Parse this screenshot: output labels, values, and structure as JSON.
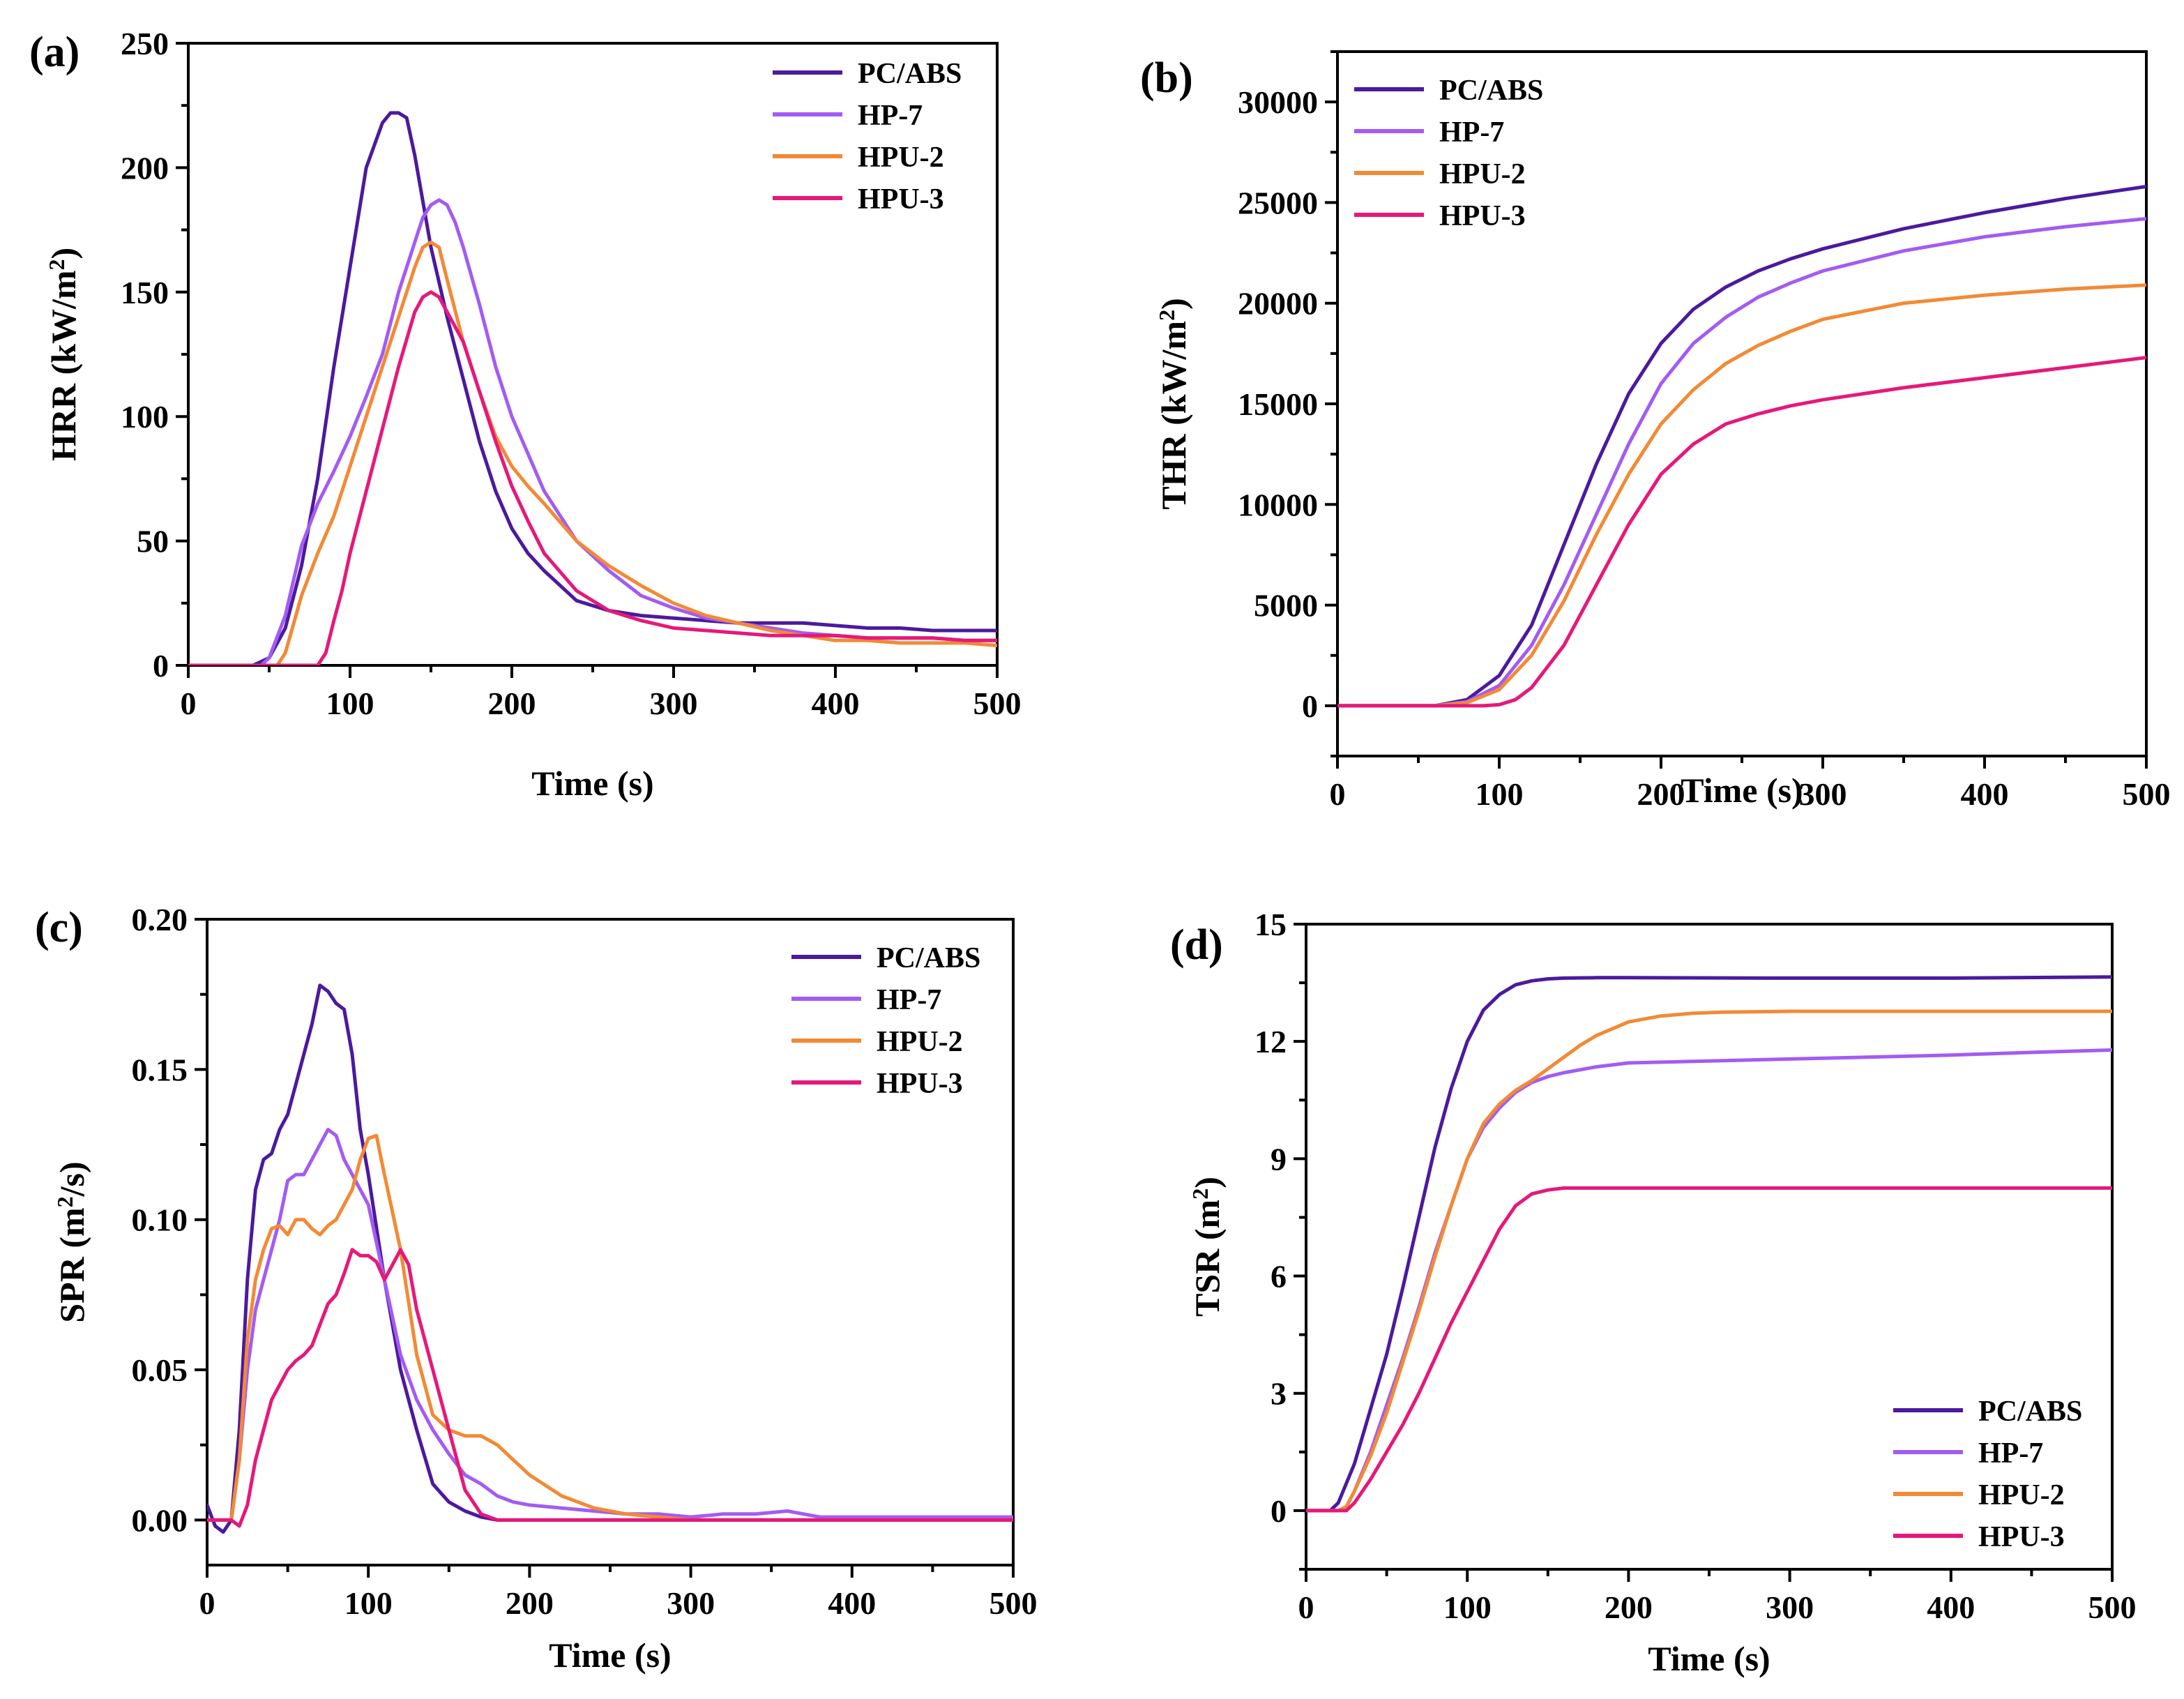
{
  "colors": {
    "PC/ABS": "#4b1a9e",
    "HP-7": "#a35cf2",
    "HPU-2": "#f28a35",
    "HPU-3": "#e5197a"
  },
  "chart_data": [
    {
      "id": "a",
      "panel_label": "(a)",
      "type": "line",
      "xlabel": "Time (s)",
      "ylabel": "HRR (kW/m²)",
      "xlim": [
        0,
        500
      ],
      "ylim": [
        0,
        250
      ],
      "xticks": [
        0,
        100,
        200,
        300,
        400,
        500
      ],
      "yticks": [
        0,
        50,
        100,
        150,
        200,
        250
      ],
      "legend_position": "top-right",
      "series": [
        {
          "name": "PC/ABS",
          "x": [
            0,
            40,
            50,
            60,
            70,
            80,
            90,
            100,
            110,
            120,
            125,
            130,
            135,
            140,
            150,
            160,
            170,
            180,
            190,
            200,
            210,
            220,
            240,
            260,
            280,
            300,
            320,
            340,
            360,
            380,
            400,
            420,
            440,
            460,
            480,
            500
          ],
          "y": [
            0,
            0,
            3,
            15,
            40,
            75,
            120,
            160,
            200,
            218,
            222,
            222,
            220,
            205,
            168,
            140,
            115,
            90,
            70,
            55,
            45,
            38,
            26,
            22,
            20,
            19,
            18,
            17,
            17,
            17,
            16,
            15,
            15,
            14,
            14,
            14
          ]
        },
        {
          "name": "HP-7",
          "x": [
            0,
            45,
            50,
            60,
            70,
            80,
            90,
            100,
            110,
            120,
            130,
            140,
            145,
            150,
            155,
            160,
            165,
            170,
            180,
            190,
            200,
            220,
            240,
            260,
            280,
            300,
            320,
            340,
            360,
            380,
            400,
            420,
            440,
            460,
            480,
            500
          ],
          "y": [
            0,
            0,
            3,
            20,
            48,
            65,
            78,
            92,
            108,
            125,
            150,
            170,
            180,
            185,
            187,
            185,
            178,
            168,
            145,
            120,
            100,
            70,
            50,
            38,
            28,
            23,
            19,
            17,
            15,
            13,
            12,
            11,
            11,
            11,
            10,
            10
          ]
        },
        {
          "name": "HPU-2",
          "x": [
            0,
            55,
            60,
            70,
            80,
            90,
            100,
            110,
            120,
            130,
            140,
            145,
            150,
            155,
            160,
            170,
            180,
            190,
            200,
            210,
            220,
            240,
            260,
            280,
            300,
            320,
            340,
            360,
            380,
            400,
            420,
            440,
            460,
            480,
            500
          ],
          "y": [
            0,
            0,
            5,
            28,
            45,
            60,
            80,
            100,
            120,
            140,
            160,
            168,
            170,
            168,
            155,
            130,
            110,
            92,
            80,
            72,
            65,
            50,
            40,
            32,
            25,
            20,
            17,
            14,
            12,
            10,
            10,
            9,
            9,
            9,
            8
          ]
        },
        {
          "name": "HPU-3",
          "x": [
            0,
            80,
            85,
            90,
            95,
            100,
            110,
            120,
            130,
            140,
            145,
            150,
            155,
            160,
            170,
            180,
            190,
            200,
            210,
            220,
            240,
            260,
            280,
            300,
            320,
            340,
            360,
            380,
            400,
            420,
            440,
            460,
            480,
            500
          ],
          "y": [
            0,
            0,
            5,
            18,
            30,
            45,
            70,
            95,
            120,
            142,
            148,
            150,
            148,
            142,
            130,
            110,
            90,
            72,
            58,
            45,
            30,
            22,
            18,
            15,
            14,
            13,
            12,
            12,
            12,
            11,
            11,
            11,
            10,
            10
          ]
        }
      ]
    },
    {
      "id": "b",
      "panel_label": "(b)",
      "type": "line",
      "xlabel": "Time (s)",
      "ylabel": "THR (kW/m²)",
      "xlim": [
        0,
        500
      ],
      "ylim": [
        -2500,
        32500
      ],
      "xticks": [
        0,
        100,
        200,
        300,
        400,
        500
      ],
      "yticks": [
        0,
        5000,
        10000,
        15000,
        20000,
        25000,
        30000
      ],
      "legend_position": "top-left",
      "series": [
        {
          "name": "PC/ABS",
          "x": [
            0,
            60,
            80,
            100,
            120,
            140,
            160,
            180,
            200,
            220,
            240,
            260,
            280,
            300,
            350,
            400,
            450,
            500
          ],
          "y": [
            0,
            0,
            300,
            1500,
            4000,
            8000,
            12000,
            15500,
            18000,
            19700,
            20800,
            21600,
            22200,
            22700,
            23700,
            24500,
            25200,
            25800
          ]
        },
        {
          "name": "HP-7",
          "x": [
            0,
            60,
            80,
            100,
            120,
            140,
            160,
            180,
            200,
            220,
            240,
            260,
            280,
            300,
            350,
            400,
            450,
            500
          ],
          "y": [
            0,
            0,
            200,
            1000,
            3000,
            6000,
            9500,
            13000,
            16000,
            18000,
            19300,
            20300,
            21000,
            21600,
            22600,
            23300,
            23800,
            24200
          ]
        },
        {
          "name": "HPU-2",
          "x": [
            0,
            60,
            80,
            100,
            120,
            140,
            160,
            180,
            200,
            220,
            240,
            260,
            280,
            300,
            350,
            400,
            450,
            500
          ],
          "y": [
            0,
            0,
            150,
            800,
            2500,
            5200,
            8500,
            11500,
            14000,
            15700,
            17000,
            17900,
            18600,
            19200,
            20000,
            20400,
            20700,
            20900
          ]
        },
        {
          "name": "HPU-3",
          "x": [
            0,
            90,
            100,
            110,
            120,
            140,
            160,
            180,
            200,
            220,
            240,
            260,
            280,
            300,
            350,
            400,
            450,
            500
          ],
          "y": [
            0,
            0,
            50,
            300,
            900,
            3000,
            6000,
            9000,
            11500,
            13000,
            14000,
            14500,
            14900,
            15200,
            15800,
            16300,
            16800,
            17300
          ]
        }
      ]
    },
    {
      "id": "c",
      "panel_label": "(c)",
      "type": "line",
      "xlabel": "Time (s)",
      "ylabel": "SPR (m²/s)",
      "xlim": [
        0,
        500
      ],
      "ylim": [
        -0.015,
        0.2
      ],
      "xticks": [
        0,
        100,
        200,
        300,
        400,
        500
      ],
      "yticks": [
        0.0,
        0.05,
        0.1,
        0.15,
        0.2
      ],
      "ytick_labels": [
        "0.00",
        "0.05",
        "0.10",
        "0.15",
        "0.20"
      ],
      "legend_position": "top-right",
      "series": [
        {
          "name": "PC/ABS",
          "x": [
            0,
            5,
            10,
            15,
            20,
            25,
            30,
            35,
            40,
            45,
            50,
            55,
            60,
            65,
            70,
            75,
            80,
            85,
            90,
            95,
            100,
            110,
            120,
            130,
            140,
            150,
            160,
            170,
            180,
            200,
            250,
            300,
            350,
            400,
            450,
            500
          ],
          "y": [
            0.005,
            -0.002,
            -0.004,
            0.0,
            0.03,
            0.08,
            0.11,
            0.12,
            0.122,
            0.13,
            0.135,
            0.145,
            0.155,
            0.165,
            0.178,
            0.176,
            0.172,
            0.17,
            0.155,
            0.13,
            0.115,
            0.08,
            0.05,
            0.03,
            0.012,
            0.006,
            0.003,
            0.001,
            0,
            0,
            0,
            0,
            0,
            0,
            0,
            0
          ]
        },
        {
          "name": "HP-7",
          "x": [
            0,
            10,
            15,
            20,
            25,
            30,
            35,
            40,
            45,
            50,
            55,
            60,
            65,
            70,
            75,
            80,
            85,
            90,
            95,
            100,
            110,
            120,
            130,
            140,
            150,
            160,
            170,
            180,
            190,
            200,
            220,
            240,
            260,
            280,
            300,
            320,
            340,
            360,
            380,
            400,
            420,
            440,
            460,
            480,
            500
          ],
          "y": [
            0,
            0,
            0,
            0.02,
            0.05,
            0.07,
            0.08,
            0.09,
            0.1,
            0.113,
            0.115,
            0.115,
            0.12,
            0.125,
            0.13,
            0.128,
            0.12,
            0.115,
            0.11,
            0.105,
            0.08,
            0.055,
            0.04,
            0.03,
            0.022,
            0.015,
            0.012,
            0.008,
            0.006,
            0.005,
            0.004,
            0.003,
            0.002,
            0.002,
            0.001,
            0.002,
            0.002,
            0.003,
            0.001,
            0.001,
            0.001,
            0.001,
            0.001,
            0.001,
            0.001
          ]
        },
        {
          "name": "HPU-2",
          "x": [
            0,
            10,
            15,
            20,
            25,
            30,
            35,
            40,
            45,
            50,
            55,
            60,
            65,
            70,
            75,
            80,
            85,
            90,
            95,
            100,
            105,
            110,
            120,
            130,
            140,
            150,
            160,
            170,
            180,
            190,
            200,
            220,
            240,
            260,
            280,
            300,
            350,
            400,
            450,
            500
          ],
          "y": [
            0,
            0,
            0,
            0.02,
            0.06,
            0.08,
            0.09,
            0.097,
            0.098,
            0.095,
            0.1,
            0.1,
            0.097,
            0.095,
            0.098,
            0.1,
            0.105,
            0.11,
            0.12,
            0.127,
            0.128,
            0.115,
            0.09,
            0.055,
            0.035,
            0.03,
            0.028,
            0.028,
            0.025,
            0.02,
            0.015,
            0.008,
            0.004,
            0.002,
            0.001,
            0,
            0,
            0,
            0,
            0
          ]
        },
        {
          "name": "HPU-3",
          "x": [
            0,
            15,
            20,
            25,
            30,
            35,
            40,
            45,
            50,
            55,
            60,
            65,
            70,
            75,
            80,
            85,
            90,
            95,
            100,
            105,
            110,
            115,
            120,
            125,
            130,
            140,
            150,
            160,
            170,
            180,
            200,
            250,
            300,
            350,
            400,
            450,
            500
          ],
          "y": [
            0,
            0,
            -0.002,
            0.005,
            0.02,
            0.03,
            0.04,
            0.045,
            0.05,
            0.053,
            0.055,
            0.058,
            0.065,
            0.072,
            0.075,
            0.082,
            0.09,
            0.088,
            0.088,
            0.086,
            0.08,
            0.085,
            0.09,
            0.085,
            0.07,
            0.05,
            0.03,
            0.01,
            0.002,
            0,
            0,
            0,
            0,
            0,
            0,
            0,
            0
          ]
        }
      ]
    },
    {
      "id": "d",
      "panel_label": "(d)",
      "type": "line",
      "xlabel": "Time (s)",
      "ylabel": "TSR (m²)",
      "xlim": [
        0,
        500
      ],
      "ylim": [
        -1.5,
        15
      ],
      "xticks": [
        0,
        100,
        200,
        300,
        400,
        500
      ],
      "yticks": [
        0,
        3,
        6,
        9,
        12,
        15
      ],
      "legend_position": "bottom-right",
      "series": [
        {
          "name": "PC/ABS",
          "x": [
            0,
            15,
            20,
            30,
            40,
            50,
            60,
            70,
            80,
            90,
            100,
            110,
            120,
            130,
            140,
            150,
            160,
            180,
            200,
            300,
            400,
            500
          ],
          "y": [
            0,
            0,
            0.2,
            1.2,
            2.6,
            4.0,
            5.7,
            7.5,
            9.3,
            10.8,
            12.0,
            12.8,
            13.2,
            13.45,
            13.55,
            13.6,
            13.62,
            13.63,
            13.63,
            13.62,
            13.62,
            13.65
          ]
        },
        {
          "name": "HP-7",
          "x": [
            0,
            20,
            25,
            30,
            40,
            50,
            60,
            70,
            80,
            90,
            100,
            110,
            120,
            130,
            140,
            150,
            160,
            180,
            200,
            250,
            300,
            350,
            400,
            450,
            500
          ],
          "y": [
            0,
            0,
            0.1,
            0.5,
            1.5,
            2.7,
            3.9,
            5.2,
            6.6,
            7.8,
            9.0,
            9.8,
            10.3,
            10.7,
            10.95,
            11.1,
            11.2,
            11.35,
            11.45,
            11.5,
            11.55,
            11.6,
            11.65,
            11.72,
            11.78
          ]
        },
        {
          "name": "HPU-2",
          "x": [
            0,
            20,
            25,
            30,
            40,
            50,
            60,
            70,
            80,
            90,
            100,
            110,
            120,
            130,
            140,
            150,
            160,
            170,
            180,
            200,
            220,
            240,
            260,
            280,
            300,
            400,
            500
          ],
          "y": [
            0,
            0,
            0.1,
            0.5,
            1.4,
            2.5,
            3.8,
            5.1,
            6.5,
            7.8,
            9.0,
            9.9,
            10.4,
            10.75,
            11.0,
            11.3,
            11.6,
            11.9,
            12.15,
            12.5,
            12.65,
            12.72,
            12.75,
            12.76,
            12.77,
            12.77,
            12.77
          ]
        },
        {
          "name": "HPU-3",
          "x": [
            0,
            20,
            25,
            30,
            40,
            50,
            60,
            70,
            80,
            90,
            100,
            110,
            120,
            130,
            140,
            150,
            160,
            180,
            200,
            300,
            400,
            500
          ],
          "y": [
            0,
            0,
            0,
            0.2,
            0.8,
            1.5,
            2.2,
            3.0,
            3.9,
            4.8,
            5.6,
            6.4,
            7.2,
            7.8,
            8.1,
            8.2,
            8.25,
            8.25,
            8.25,
            8.25,
            8.25,
            8.25
          ]
        }
      ]
    }
  ]
}
